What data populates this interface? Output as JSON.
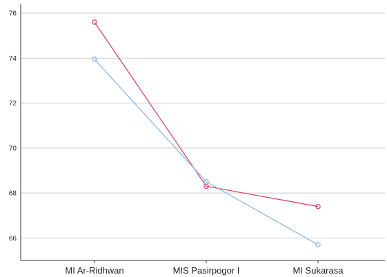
{
  "chart_data": {
    "type": "line",
    "title": "",
    "xlabel": "",
    "ylabel": "",
    "categories": [
      "MI Ar-Ridhwan",
      "MIS Pasirpogor I",
      "MI Sukarasa"
    ],
    "ylim": [
      65,
      76.4
    ],
    "yticks": [
      66,
      68,
      70,
      72,
      74,
      76
    ],
    "ytick_labels": [
      "66",
      "68",
      "70",
      "72",
      "74",
      "76"
    ],
    "grid": "horizontal",
    "legend": "none",
    "series": [
      {
        "color": "#d6456f",
        "values": [
          75.6,
          68.3,
          67.4
        ]
      },
      {
        "color": "#8fb8e8",
        "values": [
          73.95,
          68.5,
          65.7
        ]
      }
    ]
  }
}
